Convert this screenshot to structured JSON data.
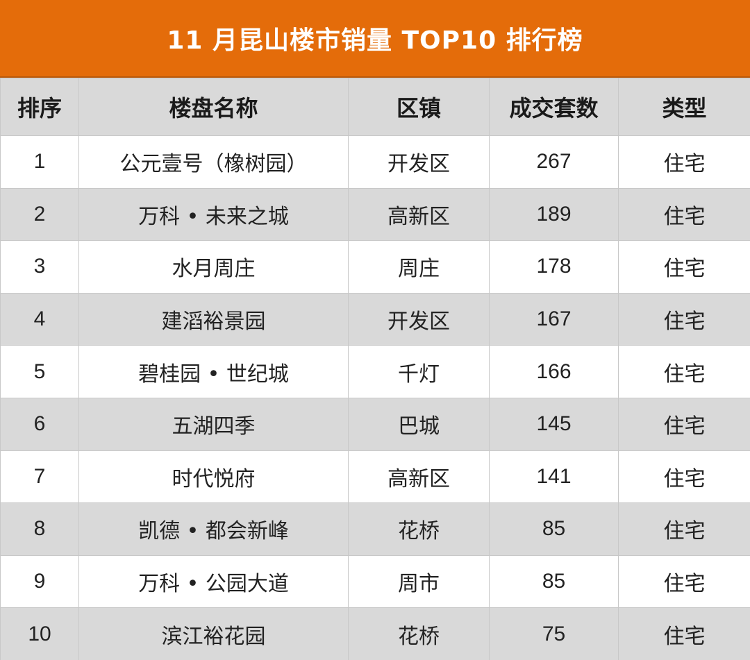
{
  "title": "11 月昆山楼市销量 TOP10 排行榜",
  "colors": {
    "title_bg": "#e46c0a",
    "header_bg": "#d9d9d9",
    "stripe_bg": "#d9d9d9"
  },
  "headers": {
    "rank": "排序",
    "name": "楼盘名称",
    "area": "区镇",
    "count": "成交套数",
    "type": "类型"
  },
  "rows": [
    {
      "rank": "1",
      "name": "公元壹号（橡树园）",
      "area": "开发区",
      "count": "267",
      "type": "住宅"
    },
    {
      "rank": "2",
      "name": "万科 • 未来之城",
      "area": "高新区",
      "count": "189",
      "type": "住宅"
    },
    {
      "rank": "3",
      "name": "水月周庄",
      "area": "周庄",
      "count": "178",
      "type": "住宅"
    },
    {
      "rank": "4",
      "name": "建滔裕景园",
      "area": "开发区",
      "count": "167",
      "type": "住宅"
    },
    {
      "rank": "5",
      "name": "碧桂园 • 世纪城",
      "area": "千灯",
      "count": "166",
      "type": "住宅"
    },
    {
      "rank": "6",
      "name": "五湖四季",
      "area": "巴城",
      "count": "145",
      "type": "住宅"
    },
    {
      "rank": "7",
      "name": "时代悦府",
      "area": "高新区",
      "count": "141",
      "type": "住宅"
    },
    {
      "rank": "8",
      "name": "凯德 • 都会新峰",
      "area": "花桥",
      "count": "85",
      "type": "住宅"
    },
    {
      "rank": "9",
      "name": "万科 • 公园大道",
      "area": "周市",
      "count": "85",
      "type": "住宅"
    },
    {
      "rank": "10",
      "name": "滨江裕花园",
      "area": "花桥",
      "count": "75",
      "type": "住宅"
    }
  ]
}
